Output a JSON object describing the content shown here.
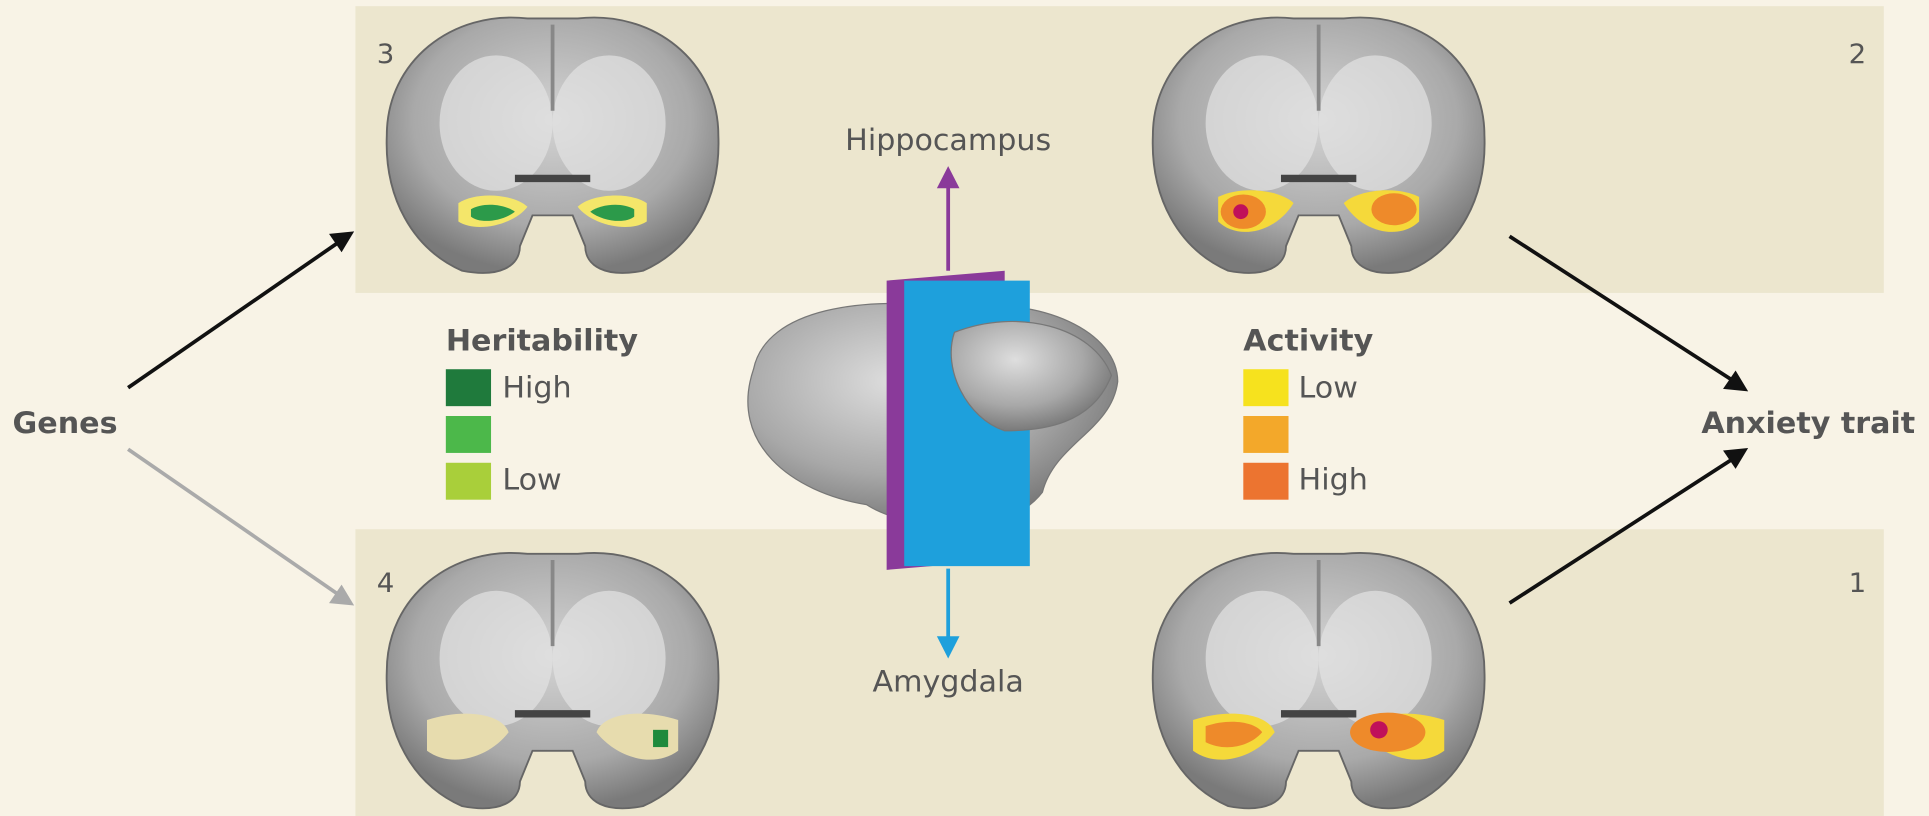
{
  "input": {
    "label": "Genes"
  },
  "output": {
    "label": "Anxiety trait"
  },
  "panels": [
    {
      "number": "3"
    },
    {
      "number": "2"
    },
    {
      "number": "4"
    },
    {
      "number": "1"
    }
  ],
  "center": {
    "top_label": "Hippocampus",
    "bottom_label": "Amygdala"
  },
  "legends": [
    {
      "title": "Heritability",
      "items": [
        "High",
        "Low"
      ]
    },
    {
      "title": "Activity",
      "items": [
        "Low",
        "High"
      ]
    }
  ]
}
